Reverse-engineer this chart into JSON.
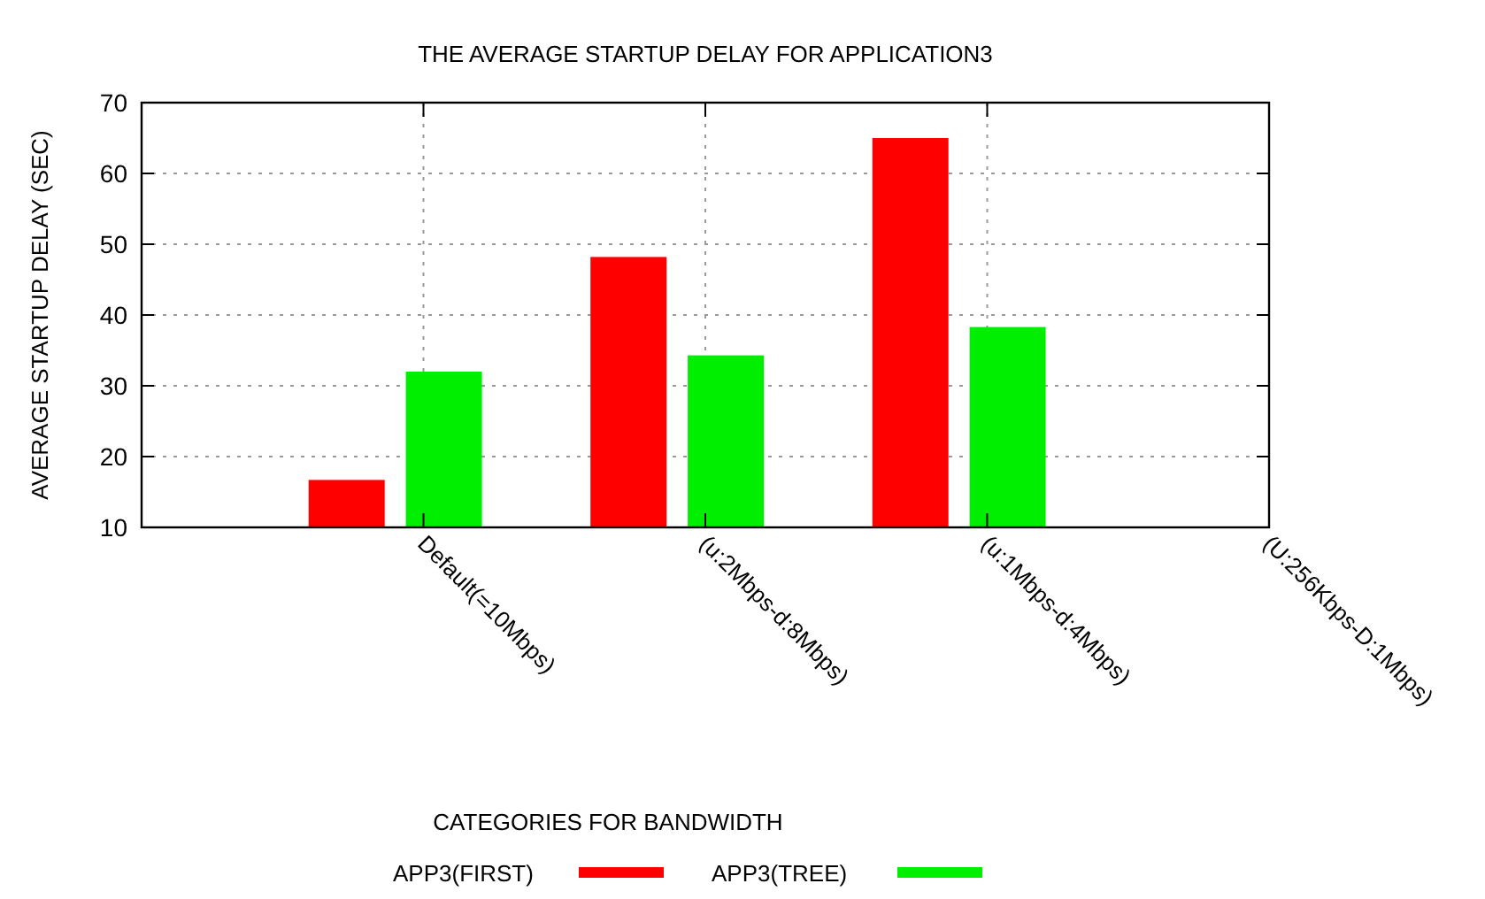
{
  "chart_data": {
    "type": "bar",
    "title": "THE AVERAGE STARTUP DELAY FOR APPLICATION3",
    "xlabel": "CATEGORIES FOR BANDWIDTH",
    "ylabel": "AVERAGE STARTUP DELAY (SEC)",
    "categories": [
      "Default(=10Mbps)",
      "(u:2Mbps-d:8Mbps)",
      "(u:1Mbps-d:4Mbps)",
      "(U:256Kbps-D:1Mbps)"
    ],
    "series": [
      {
        "name": "APP3(FIRST)",
        "color": "#ff0000",
        "values": [
          16.7,
          48.2,
          65,
          null
        ]
      },
      {
        "name": "APP3(TREE)",
        "color": "#00ee00",
        "values": [
          32,
          34.3,
          38.3,
          null
        ]
      }
    ],
    "ylim": [
      10,
      70
    ],
    "yticks": [
      10,
      20,
      30,
      40,
      50,
      60,
      70
    ],
    "grid": true,
    "legend": "bottom"
  }
}
